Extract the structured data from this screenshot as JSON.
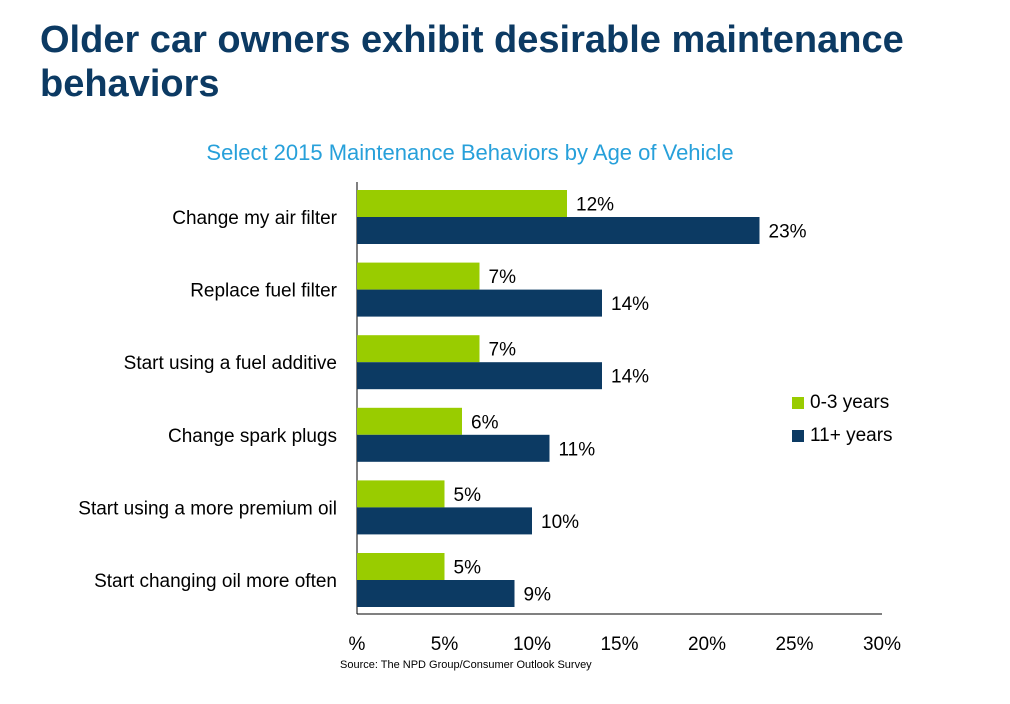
{
  "header": {
    "title": "Older car owners exhibit desirable maintenance behaviors"
  },
  "footer": {
    "source": "Source: The NPD Group/Consumer Outlook Survey"
  },
  "chart_data": {
    "type": "bar",
    "orientation": "horizontal",
    "title": "Select 2015 Maintenance Behaviors by Age of Vehicle",
    "categories": [
      "Change my air filter",
      "Replace fuel filter",
      "Start using a fuel additive",
      "Change spark plugs",
      "Start using a more premium oil",
      "Start changing oil more often"
    ],
    "series": [
      {
        "name": "0-3 years",
        "color": "#99cc00",
        "values": [
          12,
          7,
          7,
          6,
          5,
          5
        ],
        "labels": [
          "12%",
          "7%",
          "7%",
          "6%",
          "5%",
          "5%"
        ]
      },
      {
        "name": "11+ years",
        "color": "#0c3a63",
        "values": [
          23,
          14,
          14,
          11,
          10,
          9
        ],
        "labels": [
          "23%",
          "14%",
          "14%",
          "11%",
          "10%",
          "9%"
        ]
      }
    ],
    "xlim": [
      0,
      30
    ],
    "xticks": [
      0,
      5,
      10,
      15,
      20,
      25,
      30
    ],
    "xtick_labels": [
      "%",
      "5%",
      "10%",
      "15%",
      "20%",
      "25%",
      "30%"
    ],
    "grid": false,
    "legend_position": "right"
  }
}
